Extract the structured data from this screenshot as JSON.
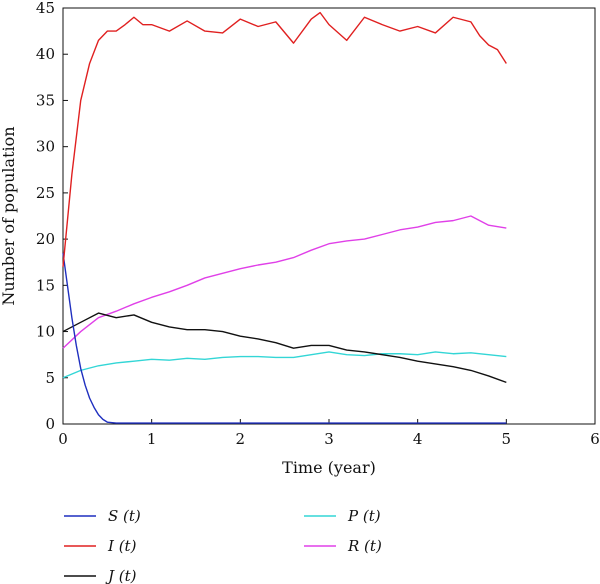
{
  "chart_data": {
    "type": "line",
    "title": "",
    "xlabel": "Time (year)",
    "ylabel": "Number of population",
    "xlim": [
      0,
      6
    ],
    "ylim": [
      0,
      45
    ],
    "xticks": [
      0,
      1,
      2,
      3,
      4,
      5,
      6
    ],
    "yticks": [
      0,
      5,
      10,
      15,
      20,
      25,
      30,
      35,
      40,
      45
    ],
    "grid": false,
    "legend_position": "bottom",
    "series": [
      {
        "name": "S (t)",
        "color": "#1f2fbf",
        "x": [
          0,
          0.05,
          0.1,
          0.15,
          0.2,
          0.25,
          0.3,
          0.35,
          0.4,
          0.45,
          0.5,
          0.6,
          0.8,
          1,
          2,
          3,
          4,
          5
        ],
        "y": [
          18.5,
          15,
          11.5,
          8.5,
          6.0,
          4.2,
          2.8,
          1.8,
          1.0,
          0.5,
          0.2,
          0.1,
          0.1,
          0.1,
          0.1,
          0.1,
          0.1,
          0.1
        ]
      },
      {
        "name": "I (t)",
        "color": "#e02020",
        "x": [
          0,
          0.1,
          0.2,
          0.3,
          0.4,
          0.5,
          0.6,
          0.7,
          0.8,
          0.9,
          1.0,
          1.2,
          1.4,
          1.6,
          1.8,
          2.0,
          2.2,
          2.4,
          2.6,
          2.8,
          2.9,
          3.0,
          3.2,
          3.4,
          3.6,
          3.8,
          4.0,
          4.2,
          4.4,
          4.6,
          4.7,
          4.8,
          4.9,
          5.0
        ],
        "y": [
          17,
          27,
          35,
          39,
          41.5,
          42.5,
          42.5,
          43.2,
          44,
          43.2,
          43.2,
          42.5,
          43.6,
          42.5,
          42.3,
          43.8,
          43,
          43.5,
          41.2,
          43.8,
          44.5,
          43.2,
          41.5,
          44,
          43.2,
          42.5,
          43,
          42.3,
          44,
          43.5,
          42,
          41,
          40.5,
          39
        ]
      },
      {
        "name": "J (t)",
        "color": "#111111",
        "x": [
          0,
          0.2,
          0.4,
          0.6,
          0.8,
          1.0,
          1.2,
          1.4,
          1.6,
          1.8,
          2.0,
          2.2,
          2.4,
          2.6,
          2.8,
          3.0,
          3.2,
          3.4,
          3.6,
          3.8,
          4.0,
          4.2,
          4.4,
          4.6,
          4.8,
          5.0
        ],
        "y": [
          10,
          11,
          12,
          11.5,
          11.8,
          11,
          10.5,
          10.2,
          10.2,
          10,
          9.5,
          9.2,
          8.8,
          8.2,
          8.5,
          8.5,
          8.0,
          7.8,
          7.5,
          7.2,
          6.8,
          6.5,
          6.2,
          5.8,
          5.2,
          4.5
        ]
      },
      {
        "name": "P (t)",
        "color": "#33d6d6",
        "x": [
          0,
          0.2,
          0.4,
          0.6,
          0.8,
          1.0,
          1.2,
          1.4,
          1.6,
          1.8,
          2.0,
          2.2,
          2.4,
          2.6,
          2.8,
          3.0,
          3.2,
          3.4,
          3.6,
          3.8,
          4.0,
          4.2,
          4.4,
          4.6,
          4.8,
          5.0
        ],
        "y": [
          5,
          5.8,
          6.3,
          6.6,
          6.8,
          7.0,
          6.9,
          7.1,
          7.0,
          7.2,
          7.3,
          7.3,
          7.2,
          7.2,
          7.5,
          7.8,
          7.5,
          7.4,
          7.6,
          7.6,
          7.5,
          7.8,
          7.6,
          7.7,
          7.5,
          7.3
        ]
      },
      {
        "name": "R (t)",
        "color": "#e040e8",
        "x": [
          0,
          0.2,
          0.4,
          0.6,
          0.8,
          1.0,
          1.2,
          1.4,
          1.6,
          1.8,
          2.0,
          2.2,
          2.4,
          2.6,
          2.8,
          3.0,
          3.2,
          3.4,
          3.6,
          3.8,
          4.0,
          4.2,
          4.4,
          4.6,
          4.8,
          5.0
        ],
        "y": [
          8.2,
          10,
          11.5,
          12.2,
          13,
          13.7,
          14.3,
          15,
          15.8,
          16.3,
          16.8,
          17.2,
          17.5,
          18,
          18.8,
          19.5,
          19.8,
          20,
          20.5,
          21,
          21.3,
          21.8,
          22,
          22.5,
          21.5,
          21.2
        ]
      }
    ]
  }
}
